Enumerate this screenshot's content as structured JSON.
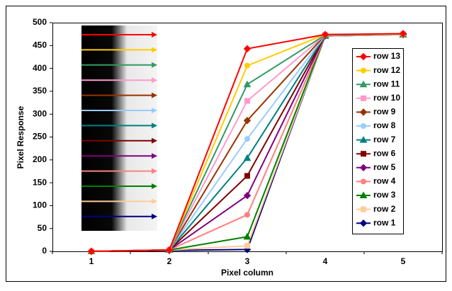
{
  "chart_data": {
    "type": "line",
    "x_label": "Pixel column",
    "y_label": "Pixel Response",
    "categories": [
      "1",
      "2",
      "3",
      "4",
      "5"
    ],
    "ylim": [
      0,
      500
    ],
    "yticks": [
      0,
      50,
      100,
      150,
      200,
      250,
      300,
      350,
      400,
      450,
      500
    ],
    "grid": false,
    "legend": "right",
    "series": [
      {
        "name": "row 13",
        "color": "#ff0000",
        "marker": "diamond",
        "values": [
          0,
          3,
          443,
          474,
          476
        ]
      },
      {
        "name": "row 12",
        "color": "#ffcc00",
        "marker": "circle",
        "values": [
          0,
          3,
          406,
          474,
          475
        ]
      },
      {
        "name": "row 11",
        "color": "#339966",
        "marker": "triangle",
        "values": [
          0,
          3,
          365,
          473,
          475
        ]
      },
      {
        "name": "row 10",
        "color": "#ff99cc",
        "marker": "square",
        "values": [
          0,
          3,
          329,
          473,
          475
        ]
      },
      {
        "name": "row 9",
        "color": "#993300",
        "marker": "diamond",
        "values": [
          0,
          3,
          286,
          473,
          475
        ]
      },
      {
        "name": "row 8",
        "color": "#99ccff",
        "marker": "circle",
        "values": [
          0,
          3,
          246,
          472,
          474
        ]
      },
      {
        "name": "row 7",
        "color": "#008080",
        "marker": "triangle",
        "values": [
          0,
          3,
          204,
          472,
          474
        ]
      },
      {
        "name": "row 6",
        "color": "#800000",
        "marker": "square",
        "values": [
          0,
          3,
          165,
          472,
          474
        ]
      },
      {
        "name": "row 5",
        "color": "#800080",
        "marker": "diamond",
        "values": [
          0,
          3,
          122,
          472,
          474
        ]
      },
      {
        "name": "row 4",
        "color": "#ff8080",
        "marker": "circle",
        "values": [
          0,
          3,
          80,
          471,
          474
        ]
      },
      {
        "name": "row 3",
        "color": "#008000",
        "marker": "triangle",
        "values": [
          0,
          3,
          32,
          471,
          474
        ]
      },
      {
        "name": "row 2",
        "color": "#ffcc99",
        "marker": "square",
        "values": [
          0,
          3,
          12,
          471,
          474
        ]
      },
      {
        "name": "row 1",
        "color": "#000080",
        "marker": "diamond",
        "values": [
          0,
          2,
          4,
          471,
          474
        ]
      }
    ]
  }
}
